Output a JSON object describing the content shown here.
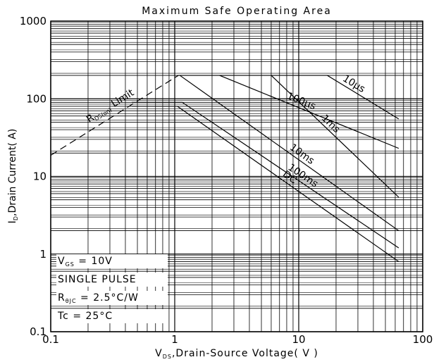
{
  "chart_data": {
    "type": "line",
    "title": "Maximum Safe Operating Area",
    "xlabel": {
      "main": "V",
      "sub": "DS",
      "rest": ",Drain-Source Voltage( V )"
    },
    "ylabel": {
      "main": "I",
      "sub": "D",
      "rest": ",Drain Current( A)"
    },
    "xscale": "log",
    "yscale": "log",
    "xlim": [
      0.1,
      100
    ],
    "ylim": [
      0.1,
      1000
    ],
    "xticks": [
      0.1,
      1,
      10,
      100
    ],
    "yticks": [
      0.1,
      1,
      10,
      100,
      1000
    ],
    "grid": true,
    "series": [
      {
        "name": "10µs",
        "color": "#000000",
        "x": [
          1.07,
          17,
          64
        ],
        "values": [
          200,
          200,
          55
        ]
      },
      {
        "name": "100µs",
        "color": "#000000",
        "x": [
          2.3,
          64
        ],
        "values": [
          200,
          23
        ]
      },
      {
        "name": "1ms",
        "color": "#000000",
        "x": [
          6,
          64
        ],
        "values": [
          200,
          5.4
        ]
      },
      {
        "name": "10ms",
        "color": "#000000",
        "x": [
          1.1,
          64
        ],
        "values": [
          200,
          2
        ]
      },
      {
        "name": "100ms",
        "color": "#000000",
        "x": [
          0.45,
          1.15,
          64
        ],
        "values": [
          90,
          90,
          1.2
        ]
      },
      {
        "name": "DC",
        "color": "#000000",
        "x": [
          0.45,
          1.05,
          64
        ],
        "values": [
          80,
          80,
          0.8
        ]
      }
    ],
    "limit_line": {
      "main": "R",
      "sub": "DS(on)",
      "rest": " Limit",
      "dashed": true,
      "color": "#000000",
      "x": [
        0.1,
        1.07
      ],
      "values": [
        18.7,
        200
      ]
    },
    "annotations": [
      {
        "main": "V",
        "sub": "GS",
        "rest": " = 10V"
      },
      {
        "main": "SINGLE PULSE"
      },
      {
        "main": "R",
        "sub": "θJC",
        "rest": " = 2.5°C/W"
      },
      {
        "main": "Tc = 25°C"
      }
    ]
  }
}
